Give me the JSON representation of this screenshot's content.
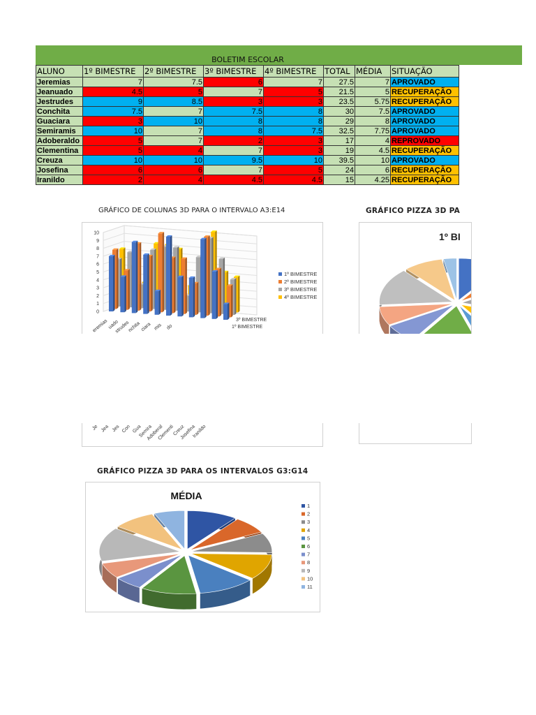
{
  "sheet": {
    "title": "BOLETIM ESCOLAR",
    "headers": [
      "ALUNO",
      "1º BIMESTRE",
      "2º BIMESTRE",
      "3º BIMESTRE",
      "4º BIMESTRE",
      "TOTAL",
      "MÉDIA",
      "SITUAÇÃO"
    ],
    "rows": [
      {
        "name": "Jeremias",
        "b": [
          "7",
          "7.5",
          "6",
          "7"
        ],
        "total": "27.5",
        "media": "7",
        "situacao": "APROVADO"
      },
      {
        "name": "Jeanuado",
        "b": [
          "4.5",
          "5",
          "7",
          "5"
        ],
        "total": "21.5",
        "media": "5",
        "situacao": "RECUPERAÇÃO"
      },
      {
        "name": "Jestrudes",
        "b": [
          "9",
          "8.5",
          "3",
          "3"
        ],
        "total": "23.5",
        "media": "5.75",
        "situacao": "RECUPERAÇÃO"
      },
      {
        "name": "Conchita",
        "b": [
          "7.5",
          "7",
          "7.5",
          "8"
        ],
        "total": "30",
        "media": "7.5",
        "situacao": "APROVADO"
      },
      {
        "name": "Guaciara",
        "b": [
          "3",
          "10",
          "8",
          "8"
        ],
        "total": "29",
        "media": "8",
        "situacao": "APROVADO"
      },
      {
        "name": "Semiramis",
        "b": [
          "10",
          "7",
          "8",
          "7.5"
        ],
        "total": "32.5",
        "media": "7.75",
        "situacao": "APROVADO"
      },
      {
        "name": "Adoberaldo",
        "b": [
          "5",
          "7",
          "2",
          "3"
        ],
        "total": "17",
        "media": "4",
        "situacao": "REPROVADO"
      },
      {
        "name": "Clementina",
        "b": [
          "5",
          "4",
          "7",
          "3"
        ],
        "total": "19",
        "media": "4.5",
        "situacao": "RECUPERAÇÃO"
      },
      {
        "name": "Creuza",
        "b": [
          "10",
          "10",
          "9.5",
          "10"
        ],
        "total": "39.5",
        "media": "10",
        "situacao": "APROVADO"
      },
      {
        "name": "Josefina",
        "b": [
          "6",
          "6",
          "7",
          "5"
        ],
        "total": "24",
        "media": "6",
        "situacao": "RECUPERAÇÃO"
      },
      {
        "name": "Iranildo",
        "b": [
          "2",
          "4",
          "4.5",
          "4.5"
        ],
        "total": "15",
        "media": "4.25",
        "situacao": "RECUPERAÇÃO"
      }
    ],
    "colors": {
      "header_band": "#70ad47",
      "light_green": "#c6e0b4",
      "cell_red": "#ff0000",
      "cell_blue": "#00b0f0",
      "recuperacao": "#ffc000",
      "reprovado": "#ff0000"
    }
  },
  "chart_data": [
    {
      "type": "bar",
      "title": "",
      "categories": [
        "Jeremias",
        "Jeanuado",
        "Jestrudes",
        "Conchita",
        "Guaciara",
        "Semiramis",
        "Adoberaldo",
        "Clementina",
        "Creuza",
        "Josefina",
        "Iranildo"
      ],
      "category_labels_front": [
        "eremias",
        "uado",
        "strudes",
        "nchita",
        "ciara",
        "mis",
        "do",
        "",
        "",
        "",
        ""
      ],
      "category_labels_back": [
        "Je",
        "Jea",
        "Jes",
        "Con",
        "Gua",
        "Semira",
        "Adoberal",
        "Clementi",
        "Creuz",
        "Josefina",
        "Iranildo"
      ],
      "series": [
        {
          "name": "1º BIMESTRE",
          "values": [
            7,
            4.5,
            9,
            7.5,
            3,
            10,
            5,
            5,
            10,
            6,
            2
          ]
        },
        {
          "name": "2º BIMESTRE",
          "values": [
            7.5,
            5,
            8.5,
            7,
            10,
            7,
            7,
            4,
            10,
            6,
            4
          ]
        },
        {
          "name": "3º BIMESTRE",
          "values": [
            6,
            7,
            3,
            7.5,
            8,
            8,
            2,
            7,
            9.5,
            7,
            4.5
          ]
        },
        {
          "name": "4º BIMESTRE",
          "values": [
            7,
            5,
            3,
            8,
            8,
            7.5,
            3,
            3,
            10,
            5,
            4.5
          ]
        }
      ],
      "series_colors": [
        "#4472c4",
        "#ed7d31",
        "#a5a5a5",
        "#ffc000"
      ],
      "depth_labels": [
        "3º BIMESTRE",
        "1º BIMESTRE"
      ],
      "ylim": [
        0,
        10
      ],
      "yticks": [
        "0",
        "1",
        "2",
        "3",
        "4",
        "5",
        "6",
        "7",
        "8",
        "9",
        "10"
      ],
      "legend_position": "right",
      "caption": "GRÁFICO DE COLUNAS 3D PARA O INTERVALO A3:E14"
    },
    {
      "type": "pie",
      "title": "1º BI",
      "caption": "GRÁFICO PIZZA 3D PA",
      "values": [
        7,
        4.5,
        9,
        7.5,
        3,
        10,
        5,
        5,
        10,
        6,
        2
      ],
      "colors": [
        "#4472c4",
        "#ed7d31",
        "#a5a5a5",
        "#ffc000",
        "#5b9bd5",
        "#70ad47",
        "#8497d3",
        "#f4a582",
        "#bfbfbf",
        "#f6c98a",
        "#9dc3e6"
      ]
    },
    {
      "type": "pie",
      "title": "MÉDIA",
      "caption": "GRÁFICO PIZZA 3D PARA OS INTERVALOS G3:G14",
      "labels": [
        "1",
        "2",
        "3",
        "4",
        "5",
        "6",
        "7",
        "8",
        "9",
        "10",
        "11"
      ],
      "values": [
        7,
        5,
        5.75,
        7.5,
        8,
        7.75,
        4,
        4.5,
        10,
        6,
        4.25
      ],
      "colors": [
        "#2f55a4",
        "#d9672a",
        "#8c8c8c",
        "#e0a500",
        "#4a80bf",
        "#5a9540",
        "#7b8fcc",
        "#e8987a",
        "#b8b8b8",
        "#f2c27e",
        "#8fb4e0"
      ],
      "legend_position": "right"
    }
  ]
}
